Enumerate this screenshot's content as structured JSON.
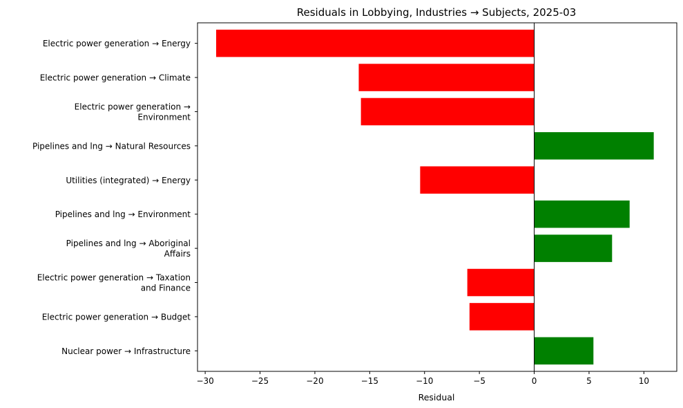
{
  "chart_data": {
    "type": "bar",
    "orientation": "horizontal",
    "title": "Residuals in Lobbying, Industries → Subjects, 2025-03",
    "xlabel": "Residual",
    "ylabel": "",
    "xlim": [
      -30.7,
      13
    ],
    "xticks": [
      -30,
      -25,
      -20,
      -15,
      -10,
      -5,
      0,
      5,
      10
    ],
    "xtick_labels": [
      "−30",
      "−25",
      "−20",
      "−15",
      "−10",
      "−5",
      "0",
      "5",
      "10"
    ],
    "grid": false,
    "zero_line": true,
    "categories": [
      [
        "Electric power generation → Energy"
      ],
      [
        "Electric power generation → Climate"
      ],
      [
        "Electric power generation →",
        "Environment"
      ],
      [
        "Pipelines and lng → Natural Resources"
      ],
      [
        "Utilities (integrated) → Energy"
      ],
      [
        "Pipelines and lng → Environment"
      ],
      [
        "Pipelines and lng → Aboriginal",
        "Affairs"
      ],
      [
        "Electric power generation → Taxation",
        "and Finance"
      ],
      [
        "Electric power generation → Budget"
      ],
      [
        "Nuclear power → Infrastructure"
      ]
    ],
    "values": [
      -29.0,
      -16.0,
      -15.8,
      10.9,
      -10.4,
      8.7,
      7.1,
      -6.1,
      -5.9,
      5.4
    ],
    "colors": {
      "positive": "#008000",
      "negative": "#ff0000",
      "zero_line": "#000000"
    }
  }
}
